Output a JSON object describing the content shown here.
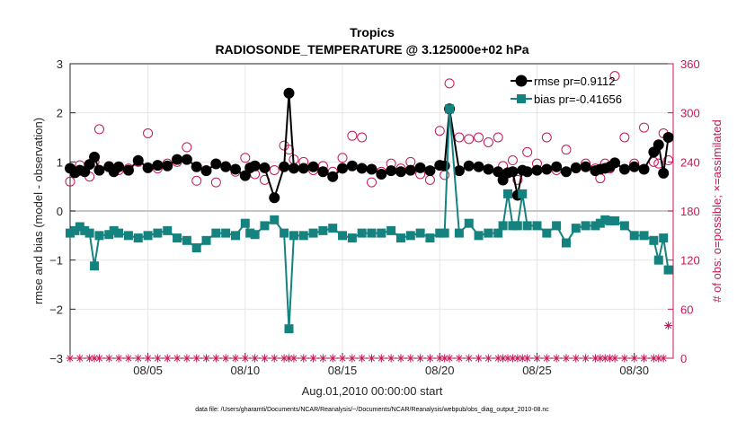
{
  "chart_data": {
    "type": "line",
    "title": "Tropics",
    "subtitle": "RADIOSONDE_TEMPERATURE @ 3.125000e+02 hPa",
    "xlabel": "Aug.01,2010 00:00:00 start",
    "ylabel": "rmse and bias (model - observation)",
    "y2label": "# of obs: o=possible; ×=assimilated",
    "footnote": "data file: /Users/gharamti/Documents/NCAR/Reanalysis/~/Documents/NCAR/Reanalysis/webpub/obs_diag_output_2010-08.nc",
    "xlim": [
      1,
      32
    ],
    "ylim": [
      -3,
      3
    ],
    "y2lim": [
      0,
      360
    ],
    "x_ticks": [
      5,
      10,
      15,
      20,
      25,
      30
    ],
    "x_tick_labels": [
      "08/05",
      "08/10",
      "08/15",
      "08/20",
      "08/25",
      "08/30"
    ],
    "y_ticks": [
      3,
      2,
      1,
      0,
      -1,
      -2,
      -3
    ],
    "y_tick_labels": [
      "3",
      "2",
      "1",
      "0",
      "−1",
      "−2",
      "−3"
    ],
    "y2_ticks": [
      360,
      300,
      240,
      180,
      120,
      60,
      0
    ],
    "y2_tick_labels": [
      "360",
      "300",
      "240",
      "180",
      "120",
      "60",
      "0"
    ],
    "grid": true,
    "legend_position": "top-right",
    "colors": {
      "rmse": "#000000",
      "bias": "#148380",
      "obs": "#c8175a",
      "zero_line": "#b3b3b3",
      "grid": "#e6e6e6"
    },
    "series": [
      {
        "name": "rmse pr=0.9112",
        "axis": "left",
        "marker": "circle",
        "x": [
          1.0,
          1.25,
          1.5,
          1.75,
          2.0,
          2.25,
          2.5,
          3.0,
          3.25,
          3.5,
          4.0,
          4.5,
          5.0,
          5.5,
          6.0,
          6.5,
          7.0,
          7.5,
          8.0,
          8.5,
          9.0,
          9.5,
          10.0,
          10.25,
          10.5,
          11.0,
          11.5,
          12.0,
          12.25,
          12.5,
          13.0,
          13.5,
          14.0,
          14.5,
          15.0,
          15.5,
          16.0,
          16.5,
          17.0,
          17.5,
          18.0,
          18.5,
          19.0,
          19.5,
          20.0,
          20.25,
          20.5,
          21.0,
          21.5,
          22.0,
          22.5,
          23.0,
          23.25,
          23.5,
          23.75,
          24.0,
          24.25,
          24.5,
          25.0,
          25.5,
          26.0,
          26.5,
          27.0,
          27.5,
          28.0,
          28.25,
          28.5,
          28.75,
          29.0,
          29.5,
          30.0,
          30.5,
          31.0,
          31.25,
          31.5,
          31.75
        ],
        "y": [
          0.87,
          0.78,
          0.83,
          0.8,
          0.95,
          1.1,
          0.83,
          0.9,
          0.8,
          0.9,
          0.83,
          1.03,
          0.88,
          0.93,
          0.92,
          1.05,
          1.05,
          0.9,
          0.82,
          0.96,
          0.9,
          0.85,
          0.72,
          0.88,
          0.92,
          0.88,
          0.27,
          0.9,
          2.4,
          0.87,
          0.87,
          0.9,
          0.8,
          0.7,
          0.87,
          0.92,
          0.87,
          0.85,
          0.75,
          0.82,
          0.8,
          0.83,
          0.88,
          0.82,
          0.93,
          0.92,
          2.08,
          0.82,
          0.92,
          0.9,
          0.85,
          0.8,
          0.63,
          0.78,
          0.8,
          0.32,
          0.83,
          0.8,
          0.83,
          0.85,
          0.9,
          0.8,
          0.88,
          0.9,
          0.82,
          0.85,
          0.87,
          0.9,
          0.98,
          0.85,
          0.9,
          0.85,
          1.2,
          1.35,
          0.77,
          1.5
        ]
      },
      {
        "name": "bias pr=-0.41656",
        "axis": "left",
        "marker": "square",
        "x": [
          1.0,
          1.25,
          1.5,
          1.75,
          2.0,
          2.25,
          2.5,
          3.0,
          3.25,
          3.5,
          4.0,
          4.5,
          5.0,
          5.5,
          6.0,
          6.5,
          7.0,
          7.5,
          8.0,
          8.5,
          9.0,
          9.5,
          10.0,
          10.25,
          10.5,
          11.0,
          11.5,
          12.0,
          12.25,
          12.5,
          13.0,
          13.5,
          14.0,
          14.5,
          15.0,
          15.5,
          16.0,
          16.5,
          17.0,
          17.5,
          18.0,
          18.5,
          19.0,
          19.5,
          20.0,
          20.25,
          20.5,
          21.0,
          21.5,
          22.0,
          22.5,
          23.0,
          23.25,
          23.5,
          23.75,
          24.0,
          24.25,
          24.5,
          25.0,
          25.5,
          26.0,
          26.5,
          27.0,
          27.5,
          28.0,
          28.25,
          28.5,
          28.75,
          29.0,
          29.5,
          30.0,
          30.5,
          31.0,
          31.25,
          31.5,
          31.75
        ],
        "y": [
          -0.45,
          -0.4,
          -0.32,
          -0.4,
          -0.45,
          -1.12,
          -0.5,
          -0.48,
          -0.4,
          -0.45,
          -0.5,
          -0.55,
          -0.5,
          -0.45,
          -0.4,
          -0.55,
          -0.6,
          -0.75,
          -0.6,
          -0.45,
          -0.45,
          -0.5,
          -0.25,
          -0.45,
          -0.48,
          -0.3,
          -0.18,
          -0.45,
          -2.4,
          -0.5,
          -0.5,
          -0.45,
          -0.4,
          -0.35,
          -0.5,
          -0.55,
          -0.45,
          -0.45,
          -0.45,
          -0.4,
          -0.55,
          -0.5,
          -0.45,
          -0.55,
          -0.45,
          -0.45,
          2.08,
          -0.45,
          -0.25,
          -0.5,
          -0.45,
          -0.45,
          -0.3,
          0.35,
          -0.3,
          -0.3,
          0.35,
          -0.3,
          -0.3,
          -0.45,
          -0.3,
          -0.65,
          -0.35,
          -0.3,
          -0.3,
          -0.25,
          -0.18,
          -0.2,
          -0.2,
          -0.3,
          -0.5,
          -0.5,
          -0.6,
          -1.0,
          -0.55,
          -1.2
        ]
      },
      {
        "name": "possible",
        "axis": "right",
        "marker": "circle-open",
        "x": [
          1.0,
          1.5,
          2.0,
          2.25,
          2.5,
          3.0,
          3.5,
          4.0,
          4.5,
          5.0,
          5.5,
          6.0,
          6.5,
          7.0,
          7.5,
          8.0,
          8.5,
          9.0,
          9.5,
          10.0,
          10.5,
          11.0,
          11.5,
          12.0,
          12.25,
          12.5,
          13.0,
          13.5,
          14.0,
          14.5,
          15.0,
          15.5,
          16.0,
          16.5,
          17.0,
          17.5,
          18.0,
          18.5,
          19.0,
          19.5,
          20.0,
          20.25,
          20.5,
          21.0,
          21.5,
          22.0,
          22.5,
          23.0,
          23.25,
          23.5,
          23.75,
          24.0,
          24.25,
          24.5,
          25.0,
          25.5,
          26.0,
          26.5,
          27.0,
          27.5,
          28.0,
          28.25,
          28.5,
          28.75,
          29.0,
          29.5,
          30.0,
          30.5,
          31.0,
          31.25,
          31.5,
          31.75
        ],
        "y": [
          216,
          236,
          222,
          240,
          280,
          235,
          230,
          232,
          240,
          275,
          232,
          238,
          240,
          258,
          217,
          230,
          215,
          235,
          228,
          245,
          225,
          218,
          230,
          260,
          255,
          243,
          240,
          230,
          235,
          228,
          245,
          272,
          270,
          215,
          228,
          238,
          232,
          240,
          225,
          218,
          278,
          224,
          336,
          270,
          268,
          270,
          264,
          270,
          235,
          226,
          242,
          218,
          230,
          252,
          238,
          270,
          230,
          255,
          232,
          238,
          232,
          220,
          238,
          232,
          345,
          270,
          238,
          282,
          240,
          238,
          275,
          242
        ]
      },
      {
        "name": "assimilated",
        "axis": "right",
        "marker": "asterisk",
        "x": [
          1.0,
          1.5,
          2.0,
          2.25,
          2.5,
          3.0,
          3.5,
          4.0,
          4.5,
          5.0,
          5.5,
          6.0,
          6.5,
          7.0,
          7.5,
          8.0,
          8.5,
          9.0,
          9.5,
          10.0,
          10.5,
          11.0,
          11.5,
          12.0,
          12.25,
          12.5,
          13.0,
          13.5,
          14.0,
          14.5,
          15.0,
          15.5,
          16.0,
          16.5,
          17.0,
          17.5,
          18.0,
          18.5,
          19.0,
          19.5,
          20.0,
          20.25,
          20.5,
          21.0,
          21.5,
          22.0,
          22.5,
          23.0,
          23.25,
          23.5,
          23.75,
          24.0,
          24.25,
          24.5,
          25.0,
          25.5,
          26.0,
          26.5,
          27.0,
          27.5,
          28.0,
          28.25,
          28.5,
          28.75,
          29.0,
          29.5,
          30.0,
          30.5,
          31.0,
          31.25,
          31.5,
          31.75
        ],
        "y": [
          0,
          0,
          0,
          0,
          0,
          0,
          0,
          0,
          0,
          0,
          0,
          0,
          0,
          0,
          0,
          0,
          0,
          0,
          0,
          0,
          0,
          0,
          0,
          0,
          0,
          0,
          0,
          0,
          0,
          0,
          0,
          0,
          0,
          0,
          0,
          0,
          0,
          0,
          0,
          0,
          0,
          0,
          0,
          0,
          0,
          0,
          0,
          0,
          0,
          0,
          0,
          0,
          0,
          0,
          0,
          0,
          0,
          0,
          0,
          0,
          0,
          0,
          0,
          0,
          0,
          0,
          0,
          0,
          0,
          0,
          0,
          40
        ]
      }
    ]
  }
}
